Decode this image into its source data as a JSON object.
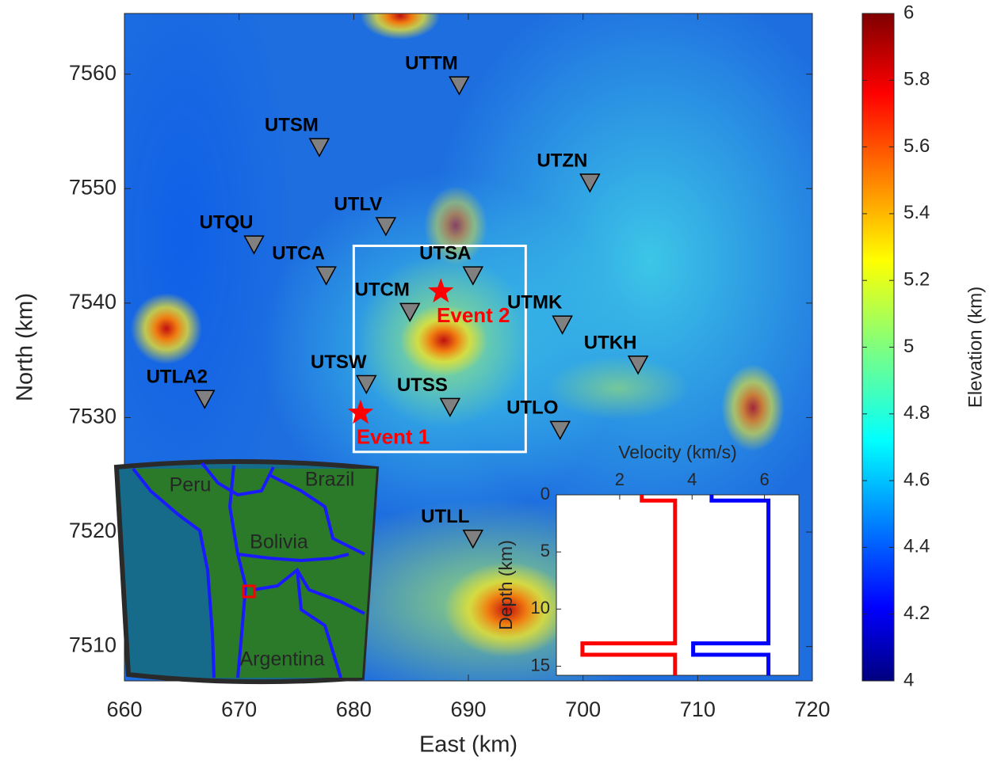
{
  "chart_data": [
    {
      "type": "map",
      "xlabel": "East (km)",
      "ylabel": "North (km)",
      "xlim": [
        660,
        720
      ],
      "ylim": [
        7507,
        7565.3
      ],
      "xticks": [
        660,
        670,
        680,
        690,
        700,
        710,
        720
      ],
      "yticks": [
        7510,
        7520,
        7530,
        7540,
        7550,
        7560
      ],
      "stations": {
        "color": "#808080",
        "names": [
          "UTTM",
          "UTSM",
          "UTZN",
          "UTLV",
          "UTQU",
          "UTCA",
          "UTSA",
          "UTCM",
          "UTMK",
          "UTKH",
          "UTSW",
          "UTLA2",
          "UTSS",
          "UTLO",
          "UTLL"
        ],
        "x": [
          689.2,
          677.0,
          700.6,
          682.8,
          671.3,
          677.6,
          690.4,
          684.9,
          698.2,
          704.8,
          681.1,
          667.0,
          688.4,
          698.0,
          690.4
        ],
        "y": [
          7559.0,
          7553.6,
          7550.5,
          7546.7,
          7545.1,
          7542.4,
          7542.4,
          7539.2,
          7538.1,
          7534.6,
          7532.9,
          7531.6,
          7530.9,
          7528.9,
          7519.4
        ]
      },
      "events": {
        "color": "#ff0000",
        "names": [
          "Event 1",
          "Event 2"
        ],
        "x": [
          680.6,
          687.6
        ],
        "y": [
          7530.4,
          7541.0
        ]
      },
      "box": {
        "color": "#ffffff",
        "x": [
          680,
          695
        ],
        "y": [
          7527,
          7545
        ]
      },
      "colorbar": {
        "label": "Elevation (km)",
        "lim": [
          4,
          6
        ],
        "ticks": [
          4,
          4.2,
          4.4,
          4.6,
          4.8,
          5,
          5.2,
          5.4,
          5.6,
          5.8,
          6
        ]
      }
    },
    {
      "type": "line",
      "xlabel": "Velocity (km/s)",
      "ylabel": "Depth (km)",
      "xlim": [
        0.25,
        6.95
      ],
      "ylim": [
        0,
        15.8
      ],
      "xticks": [
        2,
        4,
        6
      ],
      "yticks": [
        0,
        5,
        10,
        15
      ],
      "depth": [
        0,
        0.5,
        0.5,
        13,
        13,
        14,
        14,
        15.8
      ],
      "series": [
        {
          "color": "#ff0000",
          "values": [
            2.61,
            2.61,
            3.53,
            3.53,
            0.97,
            0.97,
            3.53,
            3.53
          ]
        },
        {
          "color": "#0000ff",
          "values": [
            4.54,
            4.54,
            6.11,
            6.11,
            4.03,
            4.03,
            6.11,
            6.11
          ]
        }
      ]
    }
  ],
  "locator_map": {
    "labels": [
      "Peru",
      "Brazil",
      "Bolivia",
      "Argentina"
    ]
  }
}
